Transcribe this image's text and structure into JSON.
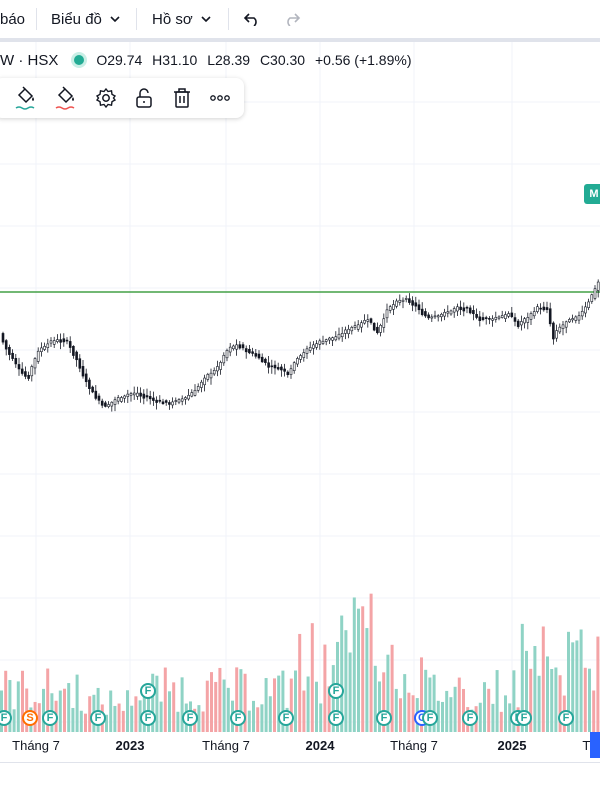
{
  "topbar": {
    "partial_item": "báo",
    "chart_menu": "Biểu đồ",
    "profile_menu": "Hồ sơ"
  },
  "symbol": {
    "name": "W · HSX",
    "open": "O29.74",
    "high": "H31.10",
    "low": "L28.39",
    "close": "C30.30",
    "change": "+0.56 (+1.89%)"
  },
  "toolbar_icons": [
    "paint-bucket-icon",
    "paint-bucket-alt-icon",
    "settings-icon",
    "unlock-icon",
    "trash-icon",
    "more-icon"
  ],
  "price_tag": "M",
  "time_axis": [
    {
      "label": "Tháng 7",
      "year": false
    },
    {
      "label": "2023",
      "year": true
    },
    {
      "label": "Tháng 7",
      "year": false
    },
    {
      "label": "2024",
      "year": true
    },
    {
      "label": "Tháng 7",
      "year": false
    },
    {
      "label": "2025",
      "year": true
    },
    {
      "label": "Th",
      "year": false
    }
  ],
  "events": [
    {
      "type": "F",
      "row": "low"
    },
    {
      "type": "S",
      "row": "low"
    },
    {
      "type": "F",
      "row": "low"
    },
    {
      "type": "F",
      "row": "low"
    },
    {
      "type": "F",
      "row": "low"
    },
    {
      "type": "F",
      "row": "high"
    },
    {
      "type": "F",
      "row": "low"
    },
    {
      "type": "F",
      "row": "low"
    },
    {
      "type": "F",
      "row": "low"
    },
    {
      "type": "F",
      "row": "low"
    },
    {
      "type": "F",
      "row": "high"
    },
    {
      "type": "F",
      "row": "low"
    },
    {
      "type": "C",
      "row": "low"
    },
    {
      "type": "F",
      "row": "low"
    },
    {
      "type": "F",
      "row": "low"
    },
    {
      "type": "F",
      "row": "low"
    },
    {
      "type": "F",
      "row": "low"
    },
    {
      "type": "F",
      "row": "low"
    }
  ],
  "colors": {
    "up": "#26a69a",
    "down": "#ef5350",
    "volume_up": "#8fd3c5",
    "volume_down": "#f4a4a6",
    "level_line": "#43a047",
    "grid": "#f0f3fa",
    "accent": "#2962ff"
  },
  "chart_data": {
    "type": "candlestick",
    "level_line": "green horizontal line near recent highs",
    "note": "price and volume panes without visible price scale"
  }
}
